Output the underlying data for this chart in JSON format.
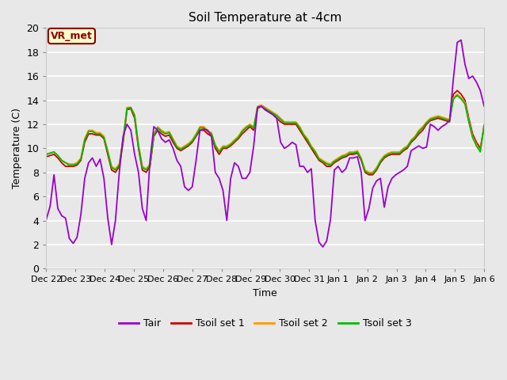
{
  "title": "Soil Temperature at -4cm",
  "xlabel": "Time",
  "ylabel": "Temperature (C)",
  "ylim": [
    0,
    20
  ],
  "background_color": "#e8e8e8",
  "plot_bg_color": "#e8e8e8",
  "grid_color": "#ffffff",
  "vr_met_label": "VR_met",
  "legend_labels": [
    "Tair",
    "Tsoil set 1",
    "Tsoil set 2",
    "Tsoil set 3"
  ],
  "line_colors": [
    "#9900cc",
    "#cc0000",
    "#ff9900",
    "#00bb00"
  ],
  "xtick_labels": [
    "Dec 22",
    "Dec 23",
    "Dec 24",
    "Dec 25",
    "Dec 26",
    "Dec 27",
    "Dec 28",
    "Dec 29",
    "Dec 30",
    "Dec 31",
    "Jan 1",
    "Jan 2",
    "Jan 3",
    "Jan 4",
    "Jan 5",
    "Jan 6"
  ],
  "tair": [
    4.1,
    5.2,
    7.8,
    5.0,
    4.4,
    4.2,
    2.5,
    2.1,
    2.6,
    4.5,
    7.5,
    8.8,
    9.2,
    8.5,
    9.1,
    7.5,
    4.2,
    2.0,
    4.0,
    8.0,
    11.0,
    12.0,
    11.5,
    9.5,
    8.0,
    5.0,
    4.0,
    9.0,
    11.8,
    11.5,
    10.8,
    10.5,
    10.7,
    10.0,
    9.0,
    8.5,
    6.8,
    6.5,
    6.8,
    9.0,
    11.5,
    11.6,
    11.5,
    11.0,
    8.0,
    7.5,
    6.5,
    4.0,
    7.5,
    8.8,
    8.5,
    7.5,
    7.5,
    8.0,
    10.2,
    13.4,
    13.5,
    13.2,
    13.0,
    12.8,
    12.5,
    10.5,
    10.0,
    10.2,
    10.5,
    10.3,
    8.5,
    8.5,
    8.0,
    8.3,
    4.0,
    2.2,
    1.8,
    2.3,
    4.1,
    8.2,
    8.5,
    8.0,
    8.3,
    9.2,
    9.2,
    9.3,
    8.0,
    4.0,
    5.0,
    6.7,
    7.3,
    7.5,
    5.1,
    6.8,
    7.5,
    7.8,
    8.0,
    8.2,
    8.5,
    9.8,
    10.0,
    10.2,
    10.0,
    10.1,
    12.0,
    11.8,
    11.5,
    11.8,
    12.0,
    12.3,
    15.8,
    18.8,
    19.0,
    17.0,
    15.8,
    16.0,
    15.5,
    14.8,
    13.5
  ],
  "tsoil1": [
    9.3,
    9.4,
    9.5,
    9.2,
    8.8,
    8.5,
    8.5,
    8.5,
    8.6,
    9.0,
    10.5,
    11.2,
    11.2,
    11.1,
    11.1,
    10.8,
    9.5,
    8.2,
    8.0,
    8.5,
    10.5,
    13.2,
    13.3,
    12.5,
    10.0,
    8.2,
    8.0,
    8.5,
    11.0,
    11.5,
    11.2,
    11.0,
    11.1,
    10.5,
    10.0,
    9.8,
    10.0,
    10.2,
    10.5,
    11.0,
    11.5,
    11.5,
    11.2,
    11.0,
    10.0,
    9.5,
    10.0,
    10.0,
    10.2,
    10.5,
    10.8,
    11.2,
    11.5,
    11.8,
    11.5,
    13.3,
    13.5,
    13.2,
    13.0,
    12.8,
    12.5,
    12.2,
    12.0,
    12.0,
    12.0,
    12.0,
    11.5,
    11.0,
    10.5,
    10.0,
    9.5,
    9.0,
    8.8,
    8.5,
    8.5,
    8.8,
    9.0,
    9.2,
    9.3,
    9.5,
    9.5,
    9.6,
    9.0,
    8.0,
    7.8,
    7.8,
    8.2,
    8.8,
    9.2,
    9.4,
    9.5,
    9.5,
    9.5,
    9.8,
    10.0,
    10.5,
    10.8,
    11.2,
    11.5,
    12.0,
    12.3,
    12.4,
    12.5,
    12.4,
    12.3,
    12.2,
    14.5,
    14.8,
    14.5,
    14.0,
    12.5,
    11.2,
    10.5,
    10.0,
    11.8
  ],
  "tsoil2": [
    9.5,
    9.6,
    9.7,
    9.4,
    9.0,
    8.8,
    8.7,
    8.7,
    8.8,
    9.2,
    10.8,
    11.5,
    11.5,
    11.3,
    11.3,
    11.0,
    9.8,
    8.5,
    8.3,
    8.7,
    10.8,
    13.4,
    13.4,
    12.8,
    10.3,
    8.5,
    8.3,
    8.7,
    11.2,
    11.8,
    11.5,
    11.3,
    11.4,
    10.8,
    10.2,
    10.0,
    10.2,
    10.4,
    10.7,
    11.2,
    11.8,
    11.8,
    11.5,
    11.3,
    10.3,
    9.8,
    10.2,
    10.2,
    10.4,
    10.7,
    11.0,
    11.5,
    11.8,
    12.0,
    11.8,
    13.5,
    13.6,
    13.4,
    13.2,
    13.0,
    12.8,
    12.5,
    12.2,
    12.2,
    12.2,
    12.2,
    11.8,
    11.2,
    10.8,
    10.2,
    9.8,
    9.2,
    9.0,
    8.8,
    8.7,
    9.0,
    9.2,
    9.4,
    9.5,
    9.7,
    9.7,
    9.8,
    9.2,
    8.2,
    8.0,
    8.0,
    8.4,
    9.0,
    9.4,
    9.6,
    9.7,
    9.7,
    9.7,
    10.0,
    10.2,
    10.7,
    11.0,
    11.5,
    11.8,
    12.2,
    12.5,
    12.6,
    12.7,
    12.6,
    12.5,
    12.4,
    14.2,
    14.5,
    14.2,
    13.8,
    12.3,
    11.0,
    10.3,
    9.8,
    12.0
  ],
  "tsoil3": [
    9.5,
    9.6,
    9.7,
    9.4,
    9.0,
    8.8,
    8.6,
    8.6,
    8.7,
    9.1,
    10.7,
    11.4,
    11.4,
    11.2,
    11.2,
    10.9,
    9.7,
    8.4,
    8.2,
    8.6,
    10.7,
    13.3,
    13.4,
    12.7,
    10.2,
    8.4,
    8.2,
    8.6,
    11.1,
    11.7,
    11.4,
    11.2,
    11.3,
    10.7,
    10.1,
    9.9,
    10.1,
    10.3,
    10.6,
    11.1,
    11.7,
    11.7,
    11.4,
    11.2,
    10.2,
    9.7,
    10.1,
    10.1,
    10.3,
    10.6,
    10.9,
    11.4,
    11.7,
    11.9,
    11.7,
    13.4,
    13.5,
    13.3,
    13.1,
    12.9,
    12.7,
    12.4,
    12.1,
    12.1,
    12.1,
    12.1,
    11.7,
    11.1,
    10.7,
    10.1,
    9.7,
    9.1,
    8.9,
    8.7,
    8.6,
    8.9,
    9.1,
    9.3,
    9.4,
    9.6,
    9.6,
    9.7,
    9.1,
    8.1,
    7.9,
    7.9,
    8.3,
    8.9,
    9.3,
    9.5,
    9.6,
    9.6,
    9.6,
    9.9,
    10.1,
    10.6,
    10.9,
    11.4,
    11.7,
    12.1,
    12.4,
    12.5,
    12.6,
    12.5,
    12.4,
    12.3,
    14.1,
    14.4,
    14.1,
    13.7,
    12.2,
    10.9,
    10.2,
    9.7,
    11.9
  ]
}
